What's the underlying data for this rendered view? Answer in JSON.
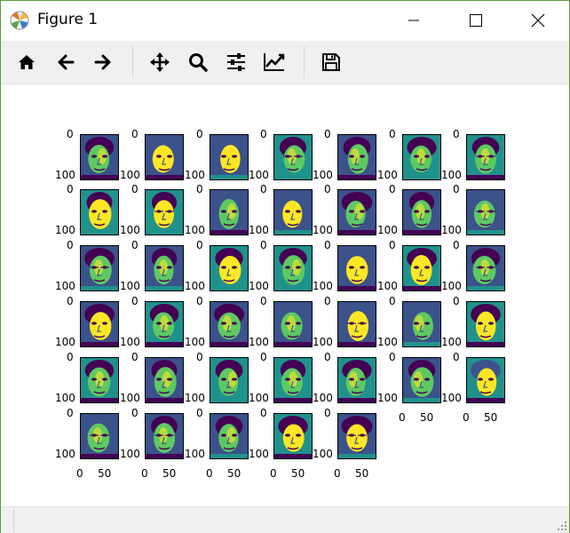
{
  "window": {
    "title": "Figure 1",
    "controls": {
      "minimize": "minimize-icon",
      "maximize": "maximize-icon",
      "close": "close-icon"
    }
  },
  "toolbar": {
    "tools": [
      {
        "name": "home",
        "icon": "home-icon"
      },
      {
        "name": "back",
        "icon": "arrow-left-icon"
      },
      {
        "name": "forward",
        "icon": "arrow-right-icon"
      },
      {
        "name": "pan",
        "icon": "move-icon"
      },
      {
        "name": "zoom",
        "icon": "magnifier-icon"
      },
      {
        "name": "subplots",
        "icon": "sliders-icon"
      },
      {
        "name": "edit-axes",
        "icon": "line-chart-icon"
      },
      {
        "name": "save",
        "icon": "floppy-disk-icon"
      }
    ]
  },
  "figure": {
    "rows": 6,
    "cols": 7,
    "subplot_count": 40,
    "ytick_labels": [
      "0",
      "100"
    ],
    "xtick_labels": [
      "0",
      "50"
    ],
    "colormap": [
      "#440154",
      "#3b528b",
      "#21918c",
      "#5ec962",
      "#fde725"
    ]
  },
  "status": {
    "message": ""
  }
}
